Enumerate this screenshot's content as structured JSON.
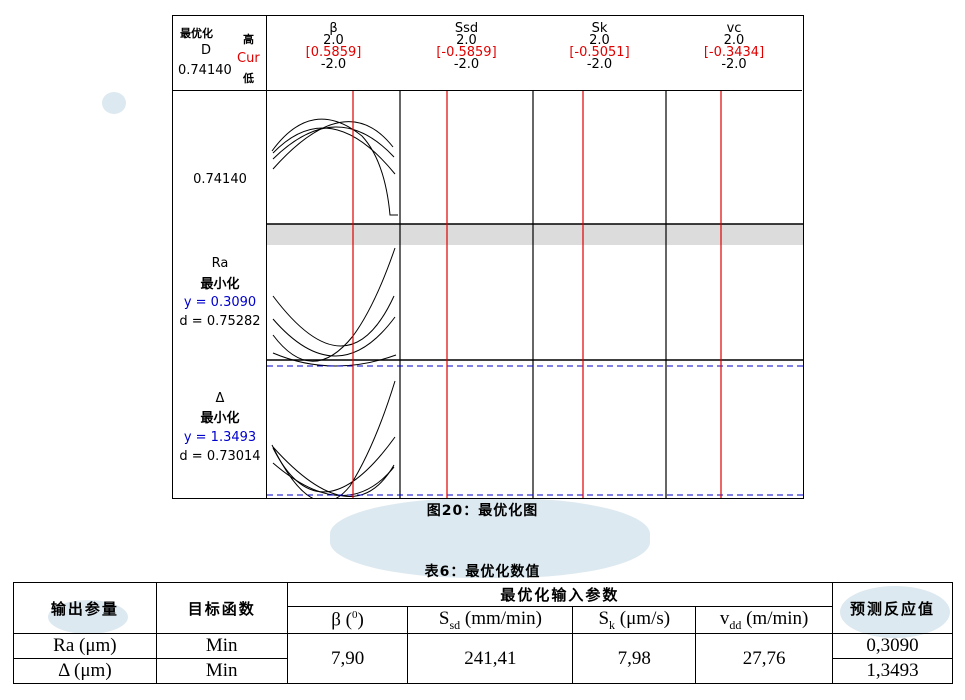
{
  "figure": {
    "header": {
      "title_label": "最优化",
      "d_label": "D",
      "d_value": "0.74140",
      "high_label": "高",
      "cur_label": "Cur",
      "low_label": "低"
    },
    "factors": [
      {
        "name": "β",
        "high": "2.0",
        "cur": "[0.5859]",
        "low": "-2.0",
        "cur_value": 0.5859
      },
      {
        "name": "Ssd",
        "high": "2.0",
        "cur": "[-0.5859]",
        "low": "-2.0",
        "cur_value": -0.5859
      },
      {
        "name": "Sk",
        "high": "2.0",
        "cur": "[-0.5051]",
        "low": "-2.0",
        "cur_value": -0.5051
      },
      {
        "name": "vc",
        "high": "2.0",
        "cur": "[-0.3434]",
        "low": "-2.0",
        "cur_value": -0.3434
      }
    ],
    "responses": [
      {
        "label": "0.74140"
      },
      {
        "name": "Ra",
        "goal": "最小化",
        "y": "y = 0.3090",
        "d": "d = 0.75282"
      },
      {
        "name": "Δ",
        "goal": "最小化",
        "y": "y = 1.3493",
        "d": "d = 0.73014"
      }
    ],
    "caption": "图20：最优化图",
    "colors": {
      "cur_line": "#e00000",
      "target_line": "#0000cc",
      "y_text": "#0000cc",
      "band": "#dcdcdc"
    }
  },
  "table": {
    "title": "表6：最优化数值",
    "col_output": "输出参量",
    "col_objective": "目标函数",
    "col_inputs": "最优化输入参数",
    "col_pred": "预测反应值",
    "inputs": [
      {
        "main": "β (",
        "sub": "",
        "sup": "0",
        "tail": ")"
      },
      {
        "main": "S",
        "sub": "sd",
        "sup": "",
        "tail": " (mm/min)"
      },
      {
        "main": "S",
        "sub": "k",
        "sup": "",
        "tail": " (μm/s)"
      },
      {
        "main": "v",
        "sub": "dd",
        "sup": "",
        "tail": " (m/min)"
      }
    ],
    "rows": [
      {
        "output": "Ra (μm)",
        "objective": "Min",
        "pred": "0,3090"
      },
      {
        "output": "Δ (μm)",
        "objective": "Min",
        "pred": "1,3493"
      }
    ],
    "values": [
      "7,90",
      "241,41",
      "7,98",
      "27,76"
    ]
  }
}
